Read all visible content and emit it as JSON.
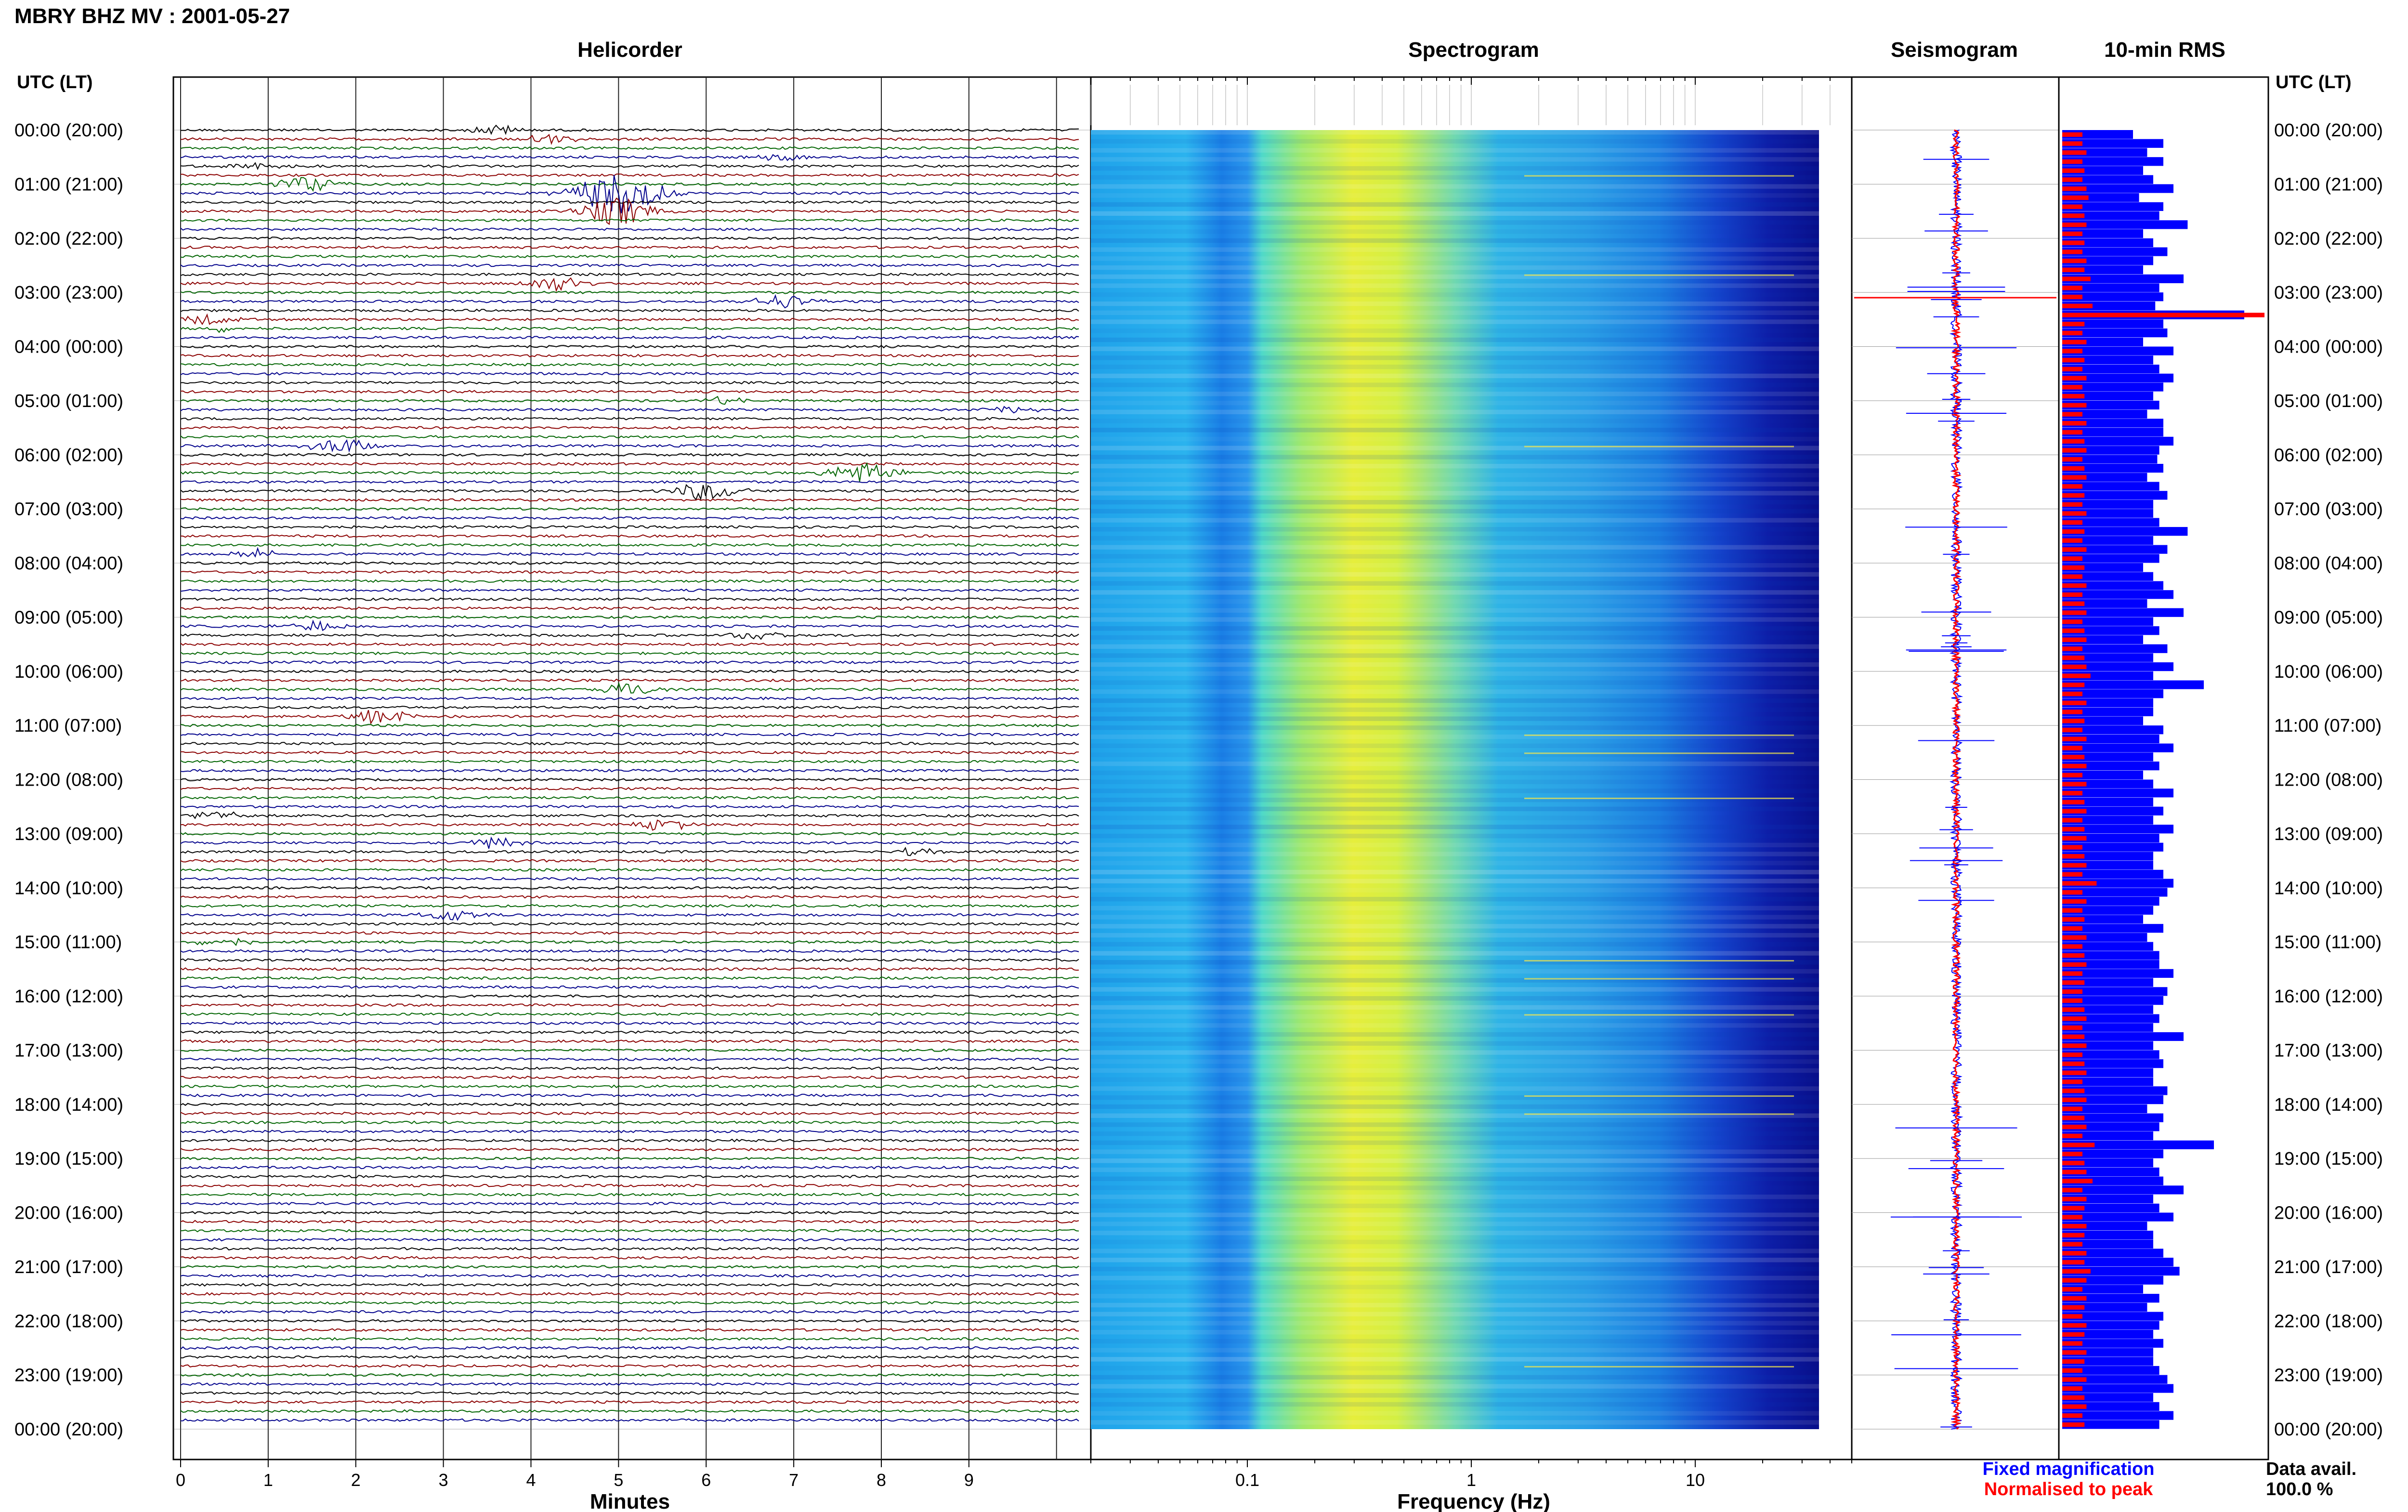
{
  "header": {
    "station_title": "MBRY BHZ MV : 2001-05-27",
    "utc_lt_label": "UTC (LT)"
  },
  "panels": {
    "helicorder": "Helicorder",
    "spectrogram": "Spectrogram",
    "seismogram": "Seismogram",
    "rms": "10-min RMS"
  },
  "legend": {
    "fixed": "Fixed magnification",
    "normalised": "Normalised to peak",
    "fixed_color": "#0000ff",
    "normalised_color": "#ff0000"
  },
  "data_avail": {
    "label": "Data avail.",
    "value": "100.0 %"
  },
  "colors": {
    "trace_cycle": [
      "#000000",
      "#8b0000",
      "#006400",
      "#00008b"
    ],
    "rms_fixed": "#0000ff",
    "rms_normalised": "#ff0000"
  },
  "chart_data": [
    {
      "type": "line",
      "title": "Helicorder",
      "xlabel": "Minutes",
      "x_ticks": [
        "0",
        "1",
        "2",
        "3",
        "4",
        "5",
        "6",
        "7",
        "8",
        "9"
      ],
      "xlim": [
        0,
        10
      ],
      "lines_per_hour": 6,
      "hours": 24,
      "time_labels": [
        "00:00 (20:00)",
        "01:00 (21:00)",
        "02:00 (22:00)",
        "03:00 (23:00)",
        "04:00 (00:00)",
        "05:00 (01:00)",
        "06:00 (02:00)",
        "07:00 (03:00)",
        "08:00 (04:00)",
        "09:00 (05:00)",
        "10:00 (06:00)",
        "11:00 (07:00)",
        "12:00 (08:00)",
        "13:00 (09:00)",
        "14:00 (10:00)",
        "15:00 (11:00)",
        "16:00 (12:00)",
        "17:00 (13:00)",
        "18:00 (14:00)",
        "19:00 (15:00)",
        "20:00 (16:00)",
        "21:00 (17:00)",
        "22:00 (18:00)",
        "23:00 (19:00)",
        "00:00 (20:00)"
      ],
      "events": [
        {
          "line": 0,
          "minute": 3.6,
          "amp": 0.6
        },
        {
          "line": 1,
          "minute": 4.2,
          "amp": 0.6
        },
        {
          "line": 3,
          "minute": 6.9,
          "amp": 0.5
        },
        {
          "line": 4,
          "minute": 0.8,
          "amp": 0.6
        },
        {
          "line": 6,
          "minute": 1.4,
          "amp": 1.1
        },
        {
          "line": 7,
          "minute": 5.0,
          "amp": 2.8
        },
        {
          "line": 9,
          "minute": 5.0,
          "amp": 1.8
        },
        {
          "line": 17,
          "minute": 4.3,
          "amp": 1.0
        },
        {
          "line": 19,
          "minute": 6.9,
          "amp": 0.9
        },
        {
          "line": 21,
          "minute": 0.3,
          "amp": 0.7
        },
        {
          "line": 22,
          "minute": 0.5,
          "amp": 0.4
        },
        {
          "line": 30,
          "minute": 6.2,
          "amp": 0.5
        },
        {
          "line": 31,
          "minute": 9.5,
          "amp": 0.5
        },
        {
          "line": 35,
          "minute": 1.8,
          "amp": 1.0
        },
        {
          "line": 38,
          "minute": 7.8,
          "amp": 1.4
        },
        {
          "line": 40,
          "minute": 6.0,
          "amp": 1.2
        },
        {
          "line": 47,
          "minute": 0.9,
          "amp": 0.6
        },
        {
          "line": 55,
          "minute": 1.5,
          "amp": 0.7
        },
        {
          "line": 56,
          "minute": 6.6,
          "amp": 0.6
        },
        {
          "line": 62,
          "minute": 5.1,
          "amp": 0.9
        },
        {
          "line": 65,
          "minute": 2.3,
          "amp": 1.0
        },
        {
          "line": 76,
          "minute": 0.4,
          "amp": 0.6
        },
        {
          "line": 77,
          "minute": 5.5,
          "amp": 0.8
        },
        {
          "line": 79,
          "minute": 3.6,
          "amp": 0.7
        },
        {
          "line": 80,
          "minute": 8.4,
          "amp": 0.5
        },
        {
          "line": 87,
          "minute": 3.1,
          "amp": 0.8
        },
        {
          "line": 90,
          "minute": 0.5,
          "amp": 0.6
        }
      ]
    },
    {
      "type": "heatmap",
      "title": "Spectrogram",
      "xlabel": "Frequency (Hz)",
      "x_scale": "log",
      "xlim": [
        0.02,
        50
      ],
      "x_ticks": [
        0.1,
        1,
        10
      ],
      "x_tick_labels": [
        "0.1",
        "1",
        "10"
      ],
      "colormap": "jet",
      "spectral_peak_hz": 0.35,
      "rows": 144
    },
    {
      "type": "line",
      "title": "Seismogram",
      "series": [
        {
          "name": "Fixed magnification",
          "color": "#0000ff"
        },
        {
          "name": "Normalised to peak",
          "color": "#ff0000"
        }
      ]
    },
    {
      "type": "bar",
      "title": "10-min RMS",
      "orientation": "horizontal",
      "bars": 144,
      "series": [
        {
          "name": "Fixed magnification",
          "color": "#0000ff",
          "values": [
            0.35,
            0.5,
            0.42,
            0.5,
            0.4,
            0.45,
            0.55,
            0.38,
            0.5,
            0.48,
            0.62,
            0.4,
            0.45,
            0.52,
            0.45,
            0.4,
            0.6,
            0.48,
            0.5,
            0.46,
            0.9,
            0.5,
            0.52,
            0.4,
            0.55,
            0.45,
            0.48,
            0.55,
            0.5,
            0.45,
            0.48,
            0.42,
            0.5,
            0.5,
            0.55,
            0.48,
            0.47,
            0.5,
            0.42,
            0.48,
            0.52,
            0.45,
            0.45,
            0.48,
            0.62,
            0.45,
            0.52,
            0.48,
            0.4,
            0.45,
            0.5,
            0.55,
            0.42,
            0.6,
            0.45,
            0.48,
            0.4,
            0.52,
            0.45,
            0.55,
            0.45,
            0.7,
            0.5,
            0.45,
            0.45,
            0.4,
            0.5,
            0.48,
            0.55,
            0.45,
            0.48,
            0.4,
            0.45,
            0.55,
            0.45,
            0.5,
            0.45,
            0.55,
            0.48,
            0.5,
            0.45,
            0.45,
            0.5,
            0.55,
            0.52,
            0.48,
            0.45,
            0.4,
            0.5,
            0.42,
            0.45,
            0.48,
            0.48,
            0.55,
            0.45,
            0.52,
            0.5,
            0.45,
            0.48,
            0.45,
            0.6,
            0.45,
            0.48,
            0.5,
            0.45,
            0.45,
            0.52,
            0.5,
            0.42,
            0.5,
            0.48,
            0.45,
            0.75,
            0.5,
            0.45,
            0.48,
            0.5,
            0.6,
            0.45,
            0.48,
            0.55,
            0.42,
            0.45,
            0.45,
            0.5,
            0.55,
            0.58,
            0.5,
            0.4,
            0.48,
            0.42,
            0.5,
            0.48,
            0.45,
            0.5,
            0.45,
            0.45,
            0.48,
            0.52,
            0.55,
            0.45,
            0.48,
            0.55,
            0.48
          ]
        },
        {
          "name": "Normalised to peak",
          "color": "#ff0000",
          "values": [
            0.1,
            0.1,
            0.12,
            0.1,
            0.11,
            0.1,
            0.12,
            0.13,
            0.1,
            0.11,
            0.12,
            0.1,
            0.11,
            0.1,
            0.12,
            0.11,
            0.14,
            0.1,
            0.1,
            0.15,
            1.0,
            0.11,
            0.1,
            0.12,
            0.1,
            0.11,
            0.1,
            0.12,
            0.1,
            0.11,
            0.12,
            0.1,
            0.12,
            0.1,
            0.11,
            0.12,
            0.1,
            0.11,
            0.12,
            0.1,
            0.11,
            0.1,
            0.12,
            0.1,
            0.11,
            0.1,
            0.12,
            0.1,
            0.11,
            0.1,
            0.12,
            0.1,
            0.11,
            0.12,
            0.1,
            0.11,
            0.12,
            0.1,
            0.11,
            0.12,
            0.14,
            0.11,
            0.1,
            0.12,
            0.1,
            0.11,
            0.1,
            0.12,
            0.1,
            0.11,
            0.12,
            0.1,
            0.12,
            0.1,
            0.11,
            0.12,
            0.1,
            0.11,
            0.12,
            0.1,
            0.11,
            0.12,
            0.1,
            0.17,
            0.1,
            0.12,
            0.1,
            0.11,
            0.1,
            0.12,
            0.1,
            0.11,
            0.12,
            0.1,
            0.11,
            0.1,
            0.1,
            0.11,
            0.12,
            0.1,
            0.11,
            0.12,
            0.1,
            0.11,
            0.12,
            0.1,
            0.11,
            0.12,
            0.1,
            0.11,
            0.12,
            0.1,
            0.16,
            0.1,
            0.11,
            0.12,
            0.15,
            0.1,
            0.12,
            0.11,
            0.1,
            0.12,
            0.11,
            0.1,
            0.12,
            0.11,
            0.14,
            0.12,
            0.1,
            0.12,
            0.11,
            0.1,
            0.12,
            0.11,
            0.1,
            0.12,
            0.11,
            0.1,
            0.12,
            0.1,
            0.11,
            0.12,
            0.1,
            0.11
          ]
        }
      ]
    }
  ]
}
